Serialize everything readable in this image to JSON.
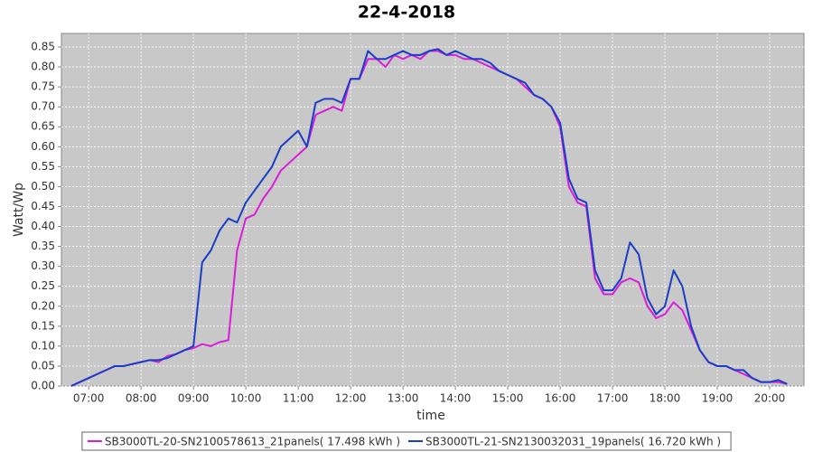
{
  "chart_data": {
    "type": "line",
    "title": "22-4-2018",
    "x_label": "time",
    "y_label": "Watt/Wp",
    "x": [
      6.667,
      6.833,
      7,
      7.167,
      7.333,
      7.5,
      7.667,
      7.833,
      8,
      8.167,
      8.333,
      8.5,
      8.667,
      8.833,
      9,
      9.167,
      9.333,
      9.5,
      9.667,
      9.833,
      10,
      10.167,
      10.333,
      10.5,
      10.667,
      10.833,
      11,
      11.167,
      11.333,
      11.5,
      11.667,
      11.833,
      12,
      12.167,
      12.333,
      12.5,
      12.667,
      12.833,
      13,
      13.167,
      13.333,
      13.5,
      13.667,
      13.833,
      14,
      14.167,
      14.333,
      14.5,
      14.667,
      14.833,
      15,
      15.167,
      15.333,
      15.5,
      15.667,
      15.833,
      16,
      16.167,
      16.333,
      16.5,
      16.667,
      16.833,
      17,
      17.167,
      17.333,
      17.5,
      17.667,
      17.833,
      18,
      18.167,
      18.333,
      18.5,
      18.667,
      18.833,
      19,
      19.167,
      19.333,
      19.5,
      19.667,
      19.833,
      20,
      20.167,
      20.333
    ],
    "series": [
      {
        "name": "SB3000TL-20-SN2100578613_21panels( 17.498 kWh )",
        "color": "#d81ed8",
        "values": [
          0,
          0.01,
          0.02,
          0.03,
          0.04,
          0.05,
          0.05,
          0.055,
          0.06,
          0.065,
          0.06,
          0.075,
          0.08,
          0.09,
          0.095,
          0.105,
          0.1,
          0.11,
          0.115,
          0.34,
          0.42,
          0.43,
          0.47,
          0.5,
          0.54,
          0.56,
          0.58,
          0.6,
          0.68,
          0.69,
          0.7,
          0.69,
          0.77,
          0.77,
          0.82,
          0.82,
          0.8,
          0.83,
          0.82,
          0.83,
          0.82,
          0.84,
          0.84,
          0.83,
          0.83,
          0.82,
          0.82,
          0.81,
          0.8,
          0.79,
          0.78,
          0.77,
          0.75,
          0.73,
          0.72,
          0.7,
          0.65,
          0.5,
          0.46,
          0.45,
          0.27,
          0.23,
          0.23,
          0.26,
          0.27,
          0.26,
          0.2,
          0.17,
          0.18,
          0.21,
          0.19,
          0.14,
          0.09,
          0.06,
          0.05,
          0.05,
          0.04,
          0.03,
          0.02,
          0.01,
          0.01,
          0.01,
          0.005
        ]
      },
      {
        "name": "SB3000TL-21-SN2130032031_19panels( 16.720 kWh )",
        "color": "#1a3dc8",
        "values": [
          0,
          0.01,
          0.02,
          0.03,
          0.04,
          0.05,
          0.05,
          0.055,
          0.06,
          0.065,
          0.065,
          0.07,
          0.08,
          0.09,
          0.1,
          0.31,
          0.34,
          0.39,
          0.42,
          0.41,
          0.46,
          0.49,
          0.52,
          0.55,
          0.6,
          0.62,
          0.64,
          0.6,
          0.71,
          0.72,
          0.72,
          0.71,
          0.77,
          0.77,
          0.84,
          0.82,
          0.82,
          0.83,
          0.84,
          0.83,
          0.83,
          0.84,
          0.845,
          0.83,
          0.84,
          0.83,
          0.82,
          0.82,
          0.81,
          0.79,
          0.78,
          0.77,
          0.76,
          0.73,
          0.72,
          0.7,
          0.66,
          0.52,
          0.47,
          0.46,
          0.29,
          0.24,
          0.24,
          0.27,
          0.36,
          0.33,
          0.22,
          0.18,
          0.2,
          0.29,
          0.25,
          0.15,
          0.09,
          0.06,
          0.05,
          0.05,
          0.04,
          0.04,
          0.02,
          0.01,
          0.01,
          0.015,
          0.005
        ]
      }
    ],
    "xlim": [
      6.48,
      20.655
    ],
    "xticks": [
      {
        "value": 7,
        "label": "07:00"
      },
      {
        "value": 8,
        "label": "08:00"
      },
      {
        "value": 9,
        "label": "09:00"
      },
      {
        "value": 10,
        "label": "10:00"
      },
      {
        "value": 11,
        "label": "11:00"
      },
      {
        "value": 12,
        "label": "12:00"
      },
      {
        "value": 13,
        "label": "13:00"
      },
      {
        "value": 14,
        "label": "14:00"
      },
      {
        "value": 15,
        "label": "15:00"
      },
      {
        "value": 16,
        "label": "16:00"
      },
      {
        "value": 17,
        "label": "17:00"
      },
      {
        "value": 18,
        "label": "18:00"
      },
      {
        "value": 19,
        "label": "19:00"
      },
      {
        "value": 20,
        "label": "20:00"
      }
    ],
    "ylim": [
      0,
      0.884
    ],
    "yticks": [
      {
        "value": 0,
        "label": "0.00"
      },
      {
        "value": 0.05,
        "label": "0.05"
      },
      {
        "value": 0.1,
        "label": "0.10"
      },
      {
        "value": 0.15,
        "label": "0.15"
      },
      {
        "value": 0.2,
        "label": "0.20"
      },
      {
        "value": 0.25,
        "label": "0.25"
      },
      {
        "value": 0.3,
        "label": "0.30"
      },
      {
        "value": 0.35,
        "label": "0.35"
      },
      {
        "value": 0.4,
        "label": "0.40"
      },
      {
        "value": 0.45,
        "label": "0.45"
      },
      {
        "value": 0.5,
        "label": "0.50"
      },
      {
        "value": 0.55,
        "label": "0.55"
      },
      {
        "value": 0.6,
        "label": "0.60"
      },
      {
        "value": 0.65,
        "label": "0.65"
      },
      {
        "value": 0.7,
        "label": "0.70"
      },
      {
        "value": 0.75,
        "label": "0.75"
      },
      {
        "value": 0.8,
        "label": "0.80"
      },
      {
        "value": 0.85,
        "label": "0.85"
      }
    ],
    "grid": true,
    "legend": "bottom"
  }
}
